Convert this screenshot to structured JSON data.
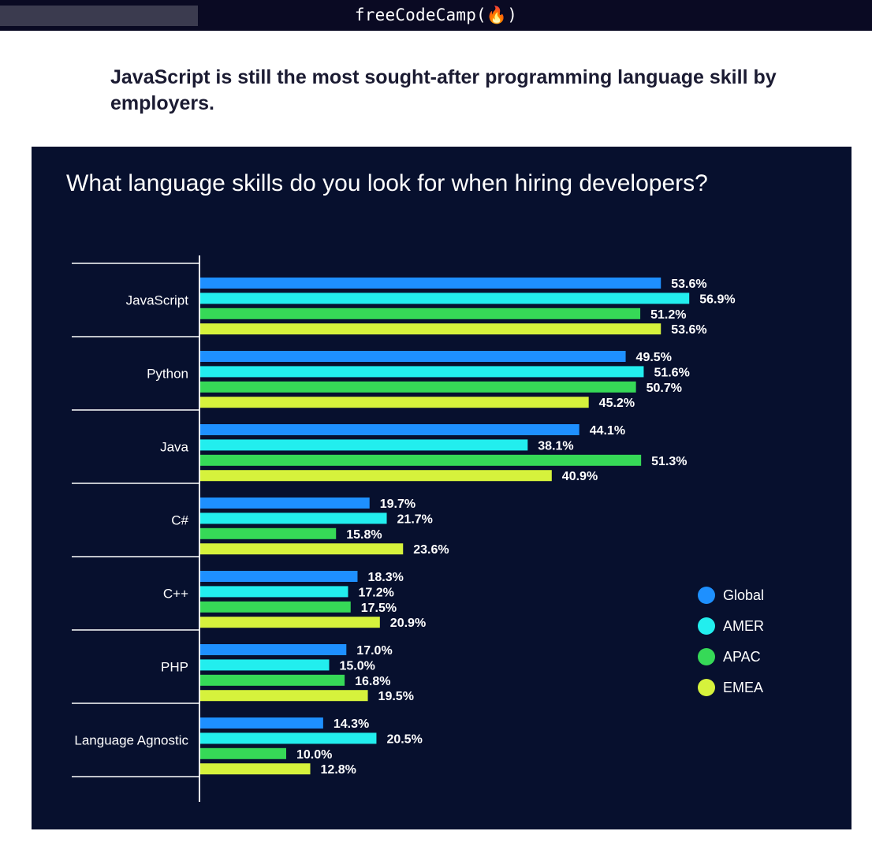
{
  "topbar": {
    "brand": "freeCodeCamp(🔥)"
  },
  "article": {
    "headline": "JavaScript is still the most sought-after programming language skill by employers."
  },
  "chart_data": {
    "type": "bar",
    "orientation": "horizontal",
    "title": "What language skills do you look for when hiring developers?",
    "categories": [
      "JavaScript",
      "Python",
      "Java",
      "C#",
      "C++",
      "PHP",
      "Language Agnostic"
    ],
    "series": [
      {
        "name": "Global",
        "color": "#1e90ff",
        "values": [
          53.6,
          49.5,
          44.1,
          19.7,
          18.3,
          17.0,
          14.3
        ]
      },
      {
        "name": "AMER",
        "color": "#22eeee",
        "values": [
          56.9,
          51.6,
          38.1,
          21.7,
          17.2,
          15.0,
          20.5
        ]
      },
      {
        "name": "APAC",
        "color": "#36d957",
        "values": [
          51.2,
          50.7,
          51.3,
          15.8,
          17.5,
          16.8,
          10.0
        ]
      },
      {
        "name": "EMEA",
        "color": "#d6f23c",
        "values": [
          53.6,
          45.2,
          40.9,
          23.6,
          20.9,
          19.5,
          12.8
        ]
      }
    ],
    "value_suffix": "%",
    "legend_position": "right",
    "grid": false,
    "background": "#07102e"
  }
}
